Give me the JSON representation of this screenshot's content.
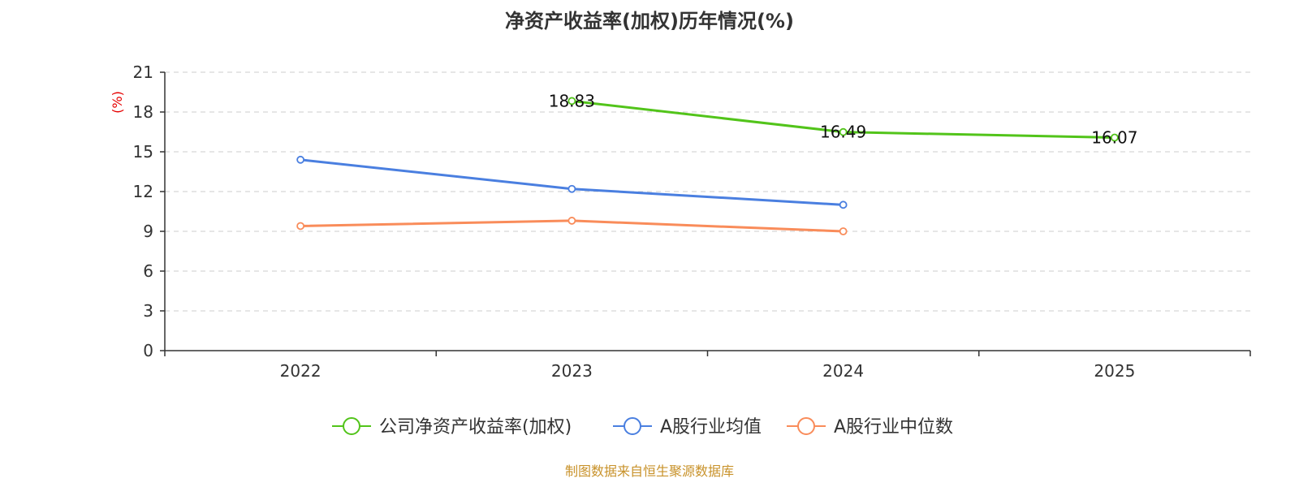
{
  "chart_data": {
    "type": "line",
    "title": "净资产收益率(加权)历年情况(%)",
    "ylabel": "(%)",
    "xlabel": "",
    "categories": [
      "2022",
      "2023",
      "2024",
      "2025"
    ],
    "ylim": [
      0,
      21
    ],
    "yticks": [
      0,
      3,
      6,
      9,
      12,
      15,
      18,
      21
    ],
    "grid": true,
    "legend_position": "bottom",
    "series": [
      {
        "name": "公司净资产收益率(加权)",
        "color": "#52c41a",
        "values": [
          null,
          18.83,
          16.49,
          16.07
        ],
        "labels": [
          "",
          "18.83",
          "16.49",
          "16.07"
        ]
      },
      {
        "name": "A股行业均值",
        "color": "#4a7fe0",
        "values": [
          14.4,
          12.2,
          11.0,
          null
        ]
      },
      {
        "name": "A股行业中位数",
        "color": "#f98c5a",
        "values": [
          9.4,
          9.8,
          9.0,
          null
        ]
      }
    ],
    "source": "制图数据来自恒生聚源数据库"
  }
}
